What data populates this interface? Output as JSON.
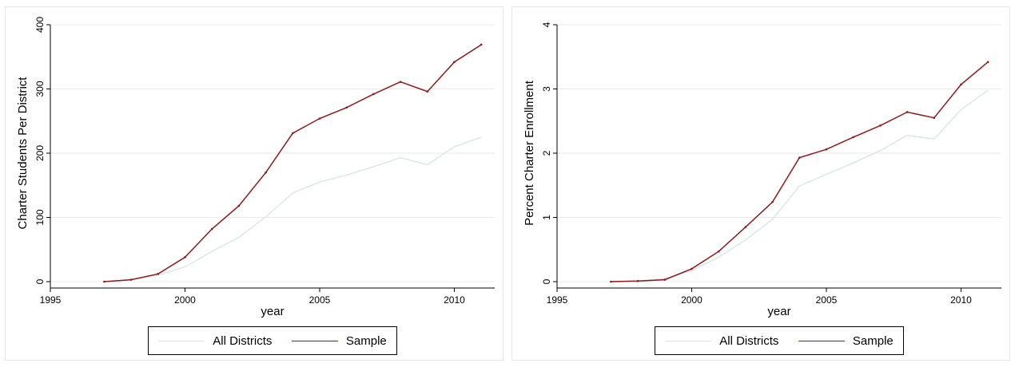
{
  "colors": {
    "all_districts": "#d3e3e6",
    "sample": "#8b1a1a",
    "axis": "#000000"
  },
  "chart_data": [
    {
      "type": "line",
      "xlabel": "year",
      "ylabel": "Charter Students Per District",
      "xlim": [
        1995,
        2011.5
      ],
      "ylim": [
        0,
        400
      ],
      "x_ticks": [
        "1995",
        "2000",
        "2005",
        "2010"
      ],
      "y_ticks": [
        "0",
        "100",
        "200",
        "300",
        "400"
      ],
      "grid": true,
      "legend_position": "bottom",
      "series": [
        {
          "name": "All Districts",
          "x": [
            1997,
            1998,
            1999,
            2000,
            2001,
            2002,
            2003,
            2004,
            2005,
            2006,
            2007,
            2008,
            2009,
            2010,
            2011
          ],
          "values": [
            0,
            3,
            10,
            23,
            47,
            69,
            101,
            138,
            155,
            166,
            179,
            193,
            182,
            210,
            225
          ]
        },
        {
          "name": "Sample",
          "x": [
            1997,
            1998,
            1999,
            2000,
            2001,
            2002,
            2003,
            2004,
            2005,
            2006,
            2007,
            2008,
            2009,
            2010,
            2011
          ],
          "values": [
            0,
            3,
            12,
            38,
            82,
            118,
            170,
            231,
            254,
            271,
            292,
            311,
            296,
            342,
            369
          ]
        }
      ]
    },
    {
      "type": "line",
      "xlabel": "year",
      "ylabel": "Percent Charter Enrollment",
      "xlim": [
        1995,
        2011.5
      ],
      "ylim": [
        0,
        4
      ],
      "x_ticks": [
        "1995",
        "2000",
        "2005",
        "2010"
      ],
      "y_ticks": [
        "0",
        "1",
        "2",
        "3",
        "4"
      ],
      "grid": true,
      "legend_position": "bottom",
      "series": [
        {
          "name": "All Districts",
          "x": [
            1997,
            1998,
            1999,
            2000,
            2001,
            2002,
            2003,
            2004,
            2005,
            2006,
            2007,
            2008,
            2009,
            2010,
            2011
          ],
          "values": [
            0,
            0.01,
            0.05,
            0.17,
            0.38,
            0.65,
            0.97,
            1.49,
            1.67,
            1.85,
            2.04,
            2.28,
            2.22,
            2.68,
            2.98
          ]
        },
        {
          "name": "Sample",
          "x": [
            1997,
            1998,
            1999,
            2000,
            2001,
            2002,
            2003,
            2004,
            2005,
            2006,
            2007,
            2008,
            2009,
            2010,
            2011
          ],
          "values": [
            0,
            0.01,
            0.03,
            0.2,
            0.47,
            0.85,
            1.24,
            1.93,
            2.06,
            2.25,
            2.43,
            2.64,
            2.55,
            3.07,
            3.42
          ]
        }
      ]
    }
  ]
}
